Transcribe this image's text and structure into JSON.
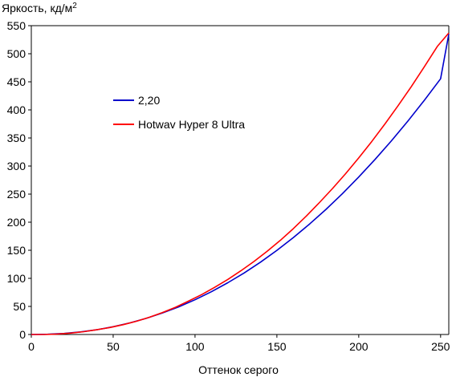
{
  "chart_data": {
    "type": "line",
    "title": "",
    "ylabel": "Яркость, кд/м",
    "ylabel_sup": "2",
    "xlabel": "Оттенок серого",
    "xlim": [
      0,
      255
    ],
    "ylim": [
      0,
      550
    ],
    "xticks": [
      0,
      50,
      100,
      150,
      200,
      250
    ],
    "yticks": [
      0,
      50,
      100,
      150,
      200,
      250,
      300,
      350,
      400,
      450,
      500,
      550
    ],
    "grid": false,
    "legend_position": "upper-left-inside",
    "series": [
      {
        "name": "2,20",
        "color": "#0000cc",
        "x": [
          0,
          10,
          20,
          30,
          40,
          50,
          60,
          70,
          80,
          90,
          100,
          110,
          120,
          130,
          140,
          150,
          160,
          170,
          180,
          190,
          200,
          210,
          220,
          230,
          240,
          250,
          255
        ],
        "y": [
          0,
          0.4,
          1.9,
          4.6,
          8.5,
          13.8,
          20.5,
          28.6,
          38.1,
          49.2,
          61.9,
          76.2,
          92.1,
          109.6,
          128.9,
          149.8,
          172.4,
          196.8,
          222.9,
          250.8,
          280.4,
          311.8,
          345.0,
          380.0,
          416.9,
          455.5,
          535.0
        ]
      },
      {
        "name": "Hotwav Hyper 8 Ultra",
        "color": "#ff0000",
        "x": [
          0,
          8,
          16,
          24,
          32,
          40,
          48,
          56,
          64,
          72,
          80,
          88,
          96,
          104,
          112,
          120,
          128,
          136,
          144,
          152,
          160,
          168,
          176,
          184,
          192,
          200,
          208,
          216,
          224,
          232,
          240,
          248,
          255
        ],
        "y": [
          0,
          0,
          0.8,
          2.5,
          5,
          8.5,
          12.5,
          17.5,
          23.5,
          30.5,
          39,
          48.5,
          59.5,
          71,
          84,
          98,
          113.5,
          130,
          148,
          167.5,
          188.5,
          211,
          235,
          260,
          286.5,
          314.5,
          344,
          375,
          407.5,
          441,
          476.5,
          513,
          537
        ]
      }
    ]
  }
}
